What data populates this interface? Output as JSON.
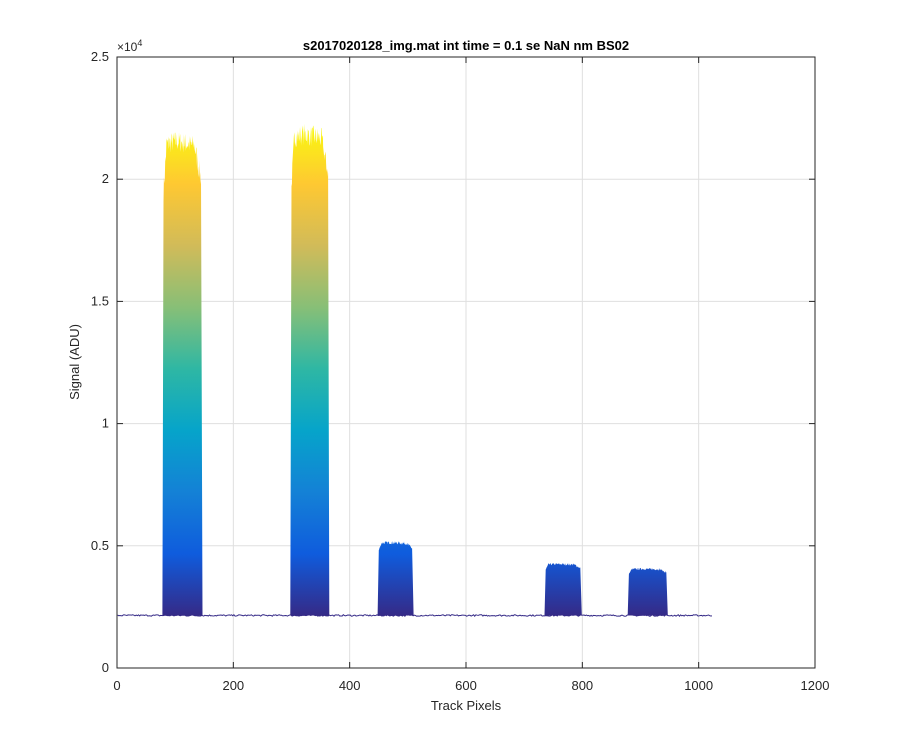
{
  "chart_data": {
    "type": "area",
    "title": "s2017020128_img.mat int time = 0.1 se  NaN nm BS02",
    "xlabel": "Track Pixels",
    "ylabel": "Signal (ADU)",
    "xlim": [
      0,
      1200
    ],
    "ylim": [
      0,
      25000
    ],
    "x_ticks": [
      0,
      200,
      400,
      600,
      800,
      1000,
      1200
    ],
    "x_tick_labels": [
      "0",
      "200",
      "400",
      "600",
      "800",
      "1000",
      "1200"
    ],
    "y_ticks": [
      0,
      5000,
      10000,
      15000,
      20000,
      25000
    ],
    "y_tick_labels": [
      "0",
      "0.5",
      "1",
      "1.5",
      "2",
      "2.5"
    ],
    "y_exponent_label": "×10",
    "y_exponent_power": "4",
    "grid": true,
    "colormap": "parula",
    "baseline": 2150,
    "x_range": [
      1,
      1024
    ],
    "peaks": [
      {
        "x_start": 80,
        "x_end": 145,
        "top": 22000
      },
      {
        "x_start": 300,
        "x_end": 363,
        "top": 22300
      },
      {
        "x_start": 450,
        "x_end": 508,
        "top": 5200
      },
      {
        "x_start": 737,
        "x_end": 797,
        "top": 4300
      },
      {
        "x_start": 880,
        "x_end": 945,
        "top": 4100
      }
    ],
    "colors": {
      "axis": "#262626",
      "grid": "#dfdfdf",
      "baseline_line": "#352a87",
      "gradient": [
        "#352a87",
        "#0f5cdd",
        "#1481d6",
        "#06a4ca",
        "#2eb7a4",
        "#87bf77",
        "#d1bb59",
        "#fec832",
        "#f9fb0e"
      ]
    }
  }
}
